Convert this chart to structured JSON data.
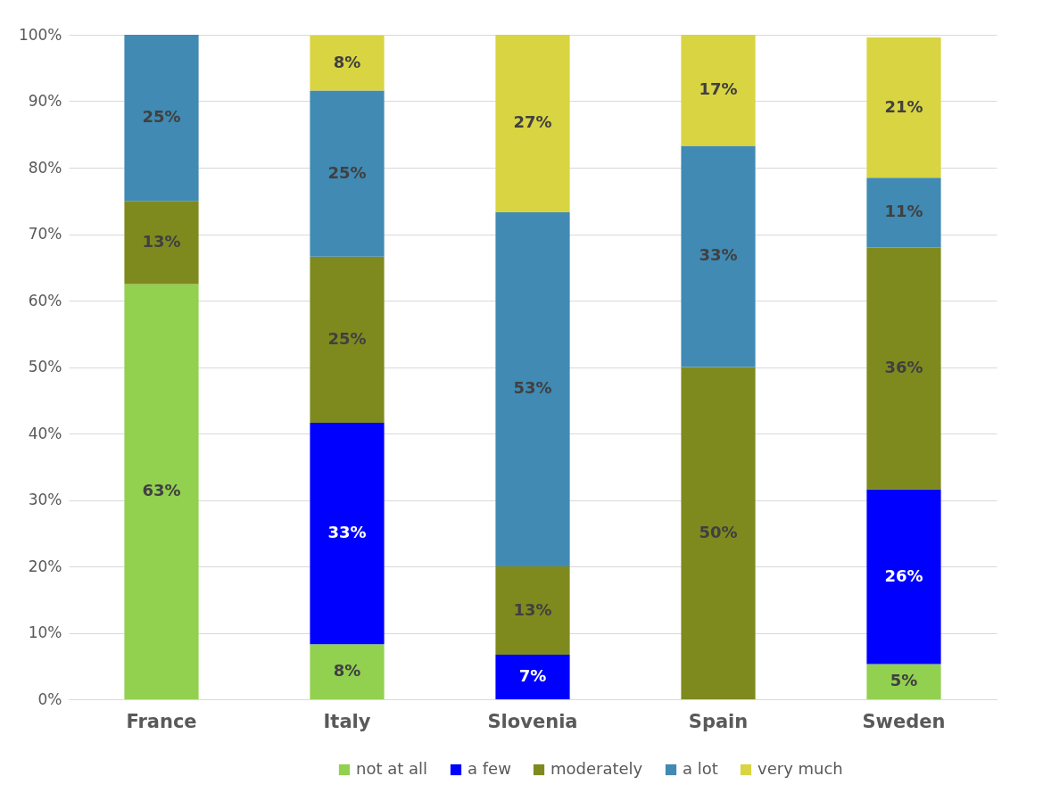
{
  "chart_data": {
    "type": "bar",
    "stacked": true,
    "categories": [
      "France",
      "Italy",
      "Slovenia",
      "Spain",
      "Sweden"
    ],
    "series": [
      {
        "name": "not at all",
        "color": "#92d050",
        "values": [
          62.5,
          8.3,
          null,
          null,
          5.3
        ],
        "value_labels": [
          "63%",
          "8%",
          null,
          null,
          "5%"
        ]
      },
      {
        "name": "a few",
        "color": "#0000ff",
        "values": [
          null,
          33.3,
          6.7,
          null,
          26.3
        ],
        "value_labels": [
          null,
          "33%",
          "7%",
          null,
          "26%"
        ]
      },
      {
        "name": "moderately",
        "color": "#7f8a1e",
        "values": [
          12.5,
          25,
          13.3,
          50,
          36.4
        ],
        "value_labels": [
          "13%",
          "25%",
          "13%",
          "50%",
          "36%"
        ]
      },
      {
        "name": "a lot",
        "color": "#418ab3",
        "values": [
          25,
          25,
          53.3,
          33.3,
          10.5
        ],
        "value_labels": [
          "25%",
          "25%",
          "53%",
          "33%",
          "11%"
        ]
      },
      {
        "name": "very much",
        "color": "#d9d441",
        "values": [
          null,
          8.3,
          26.7,
          16.7,
          21.1
        ],
        "value_labels": [
          null,
          "8%",
          "27%",
          "17%",
          "21%"
        ]
      }
    ],
    "ylim": [
      0,
      100
    ],
    "yticks": [
      {
        "value": 0,
        "label": "0%"
      },
      {
        "value": 10,
        "label": "10%"
      },
      {
        "value": 20,
        "label": "20%"
      },
      {
        "value": 30,
        "label": "30%"
      },
      {
        "value": 40,
        "label": "40%"
      },
      {
        "value": 50,
        "label": "50%"
      },
      {
        "value": 60,
        "label": "60%"
      },
      {
        "value": 70,
        "label": "70%"
      },
      {
        "value": 80,
        "label": "80%"
      },
      {
        "value": 90,
        "label": "90%"
      },
      {
        "value": 100,
        "label": "100%"
      }
    ],
    "grid": "y",
    "legend": "bottom"
  }
}
